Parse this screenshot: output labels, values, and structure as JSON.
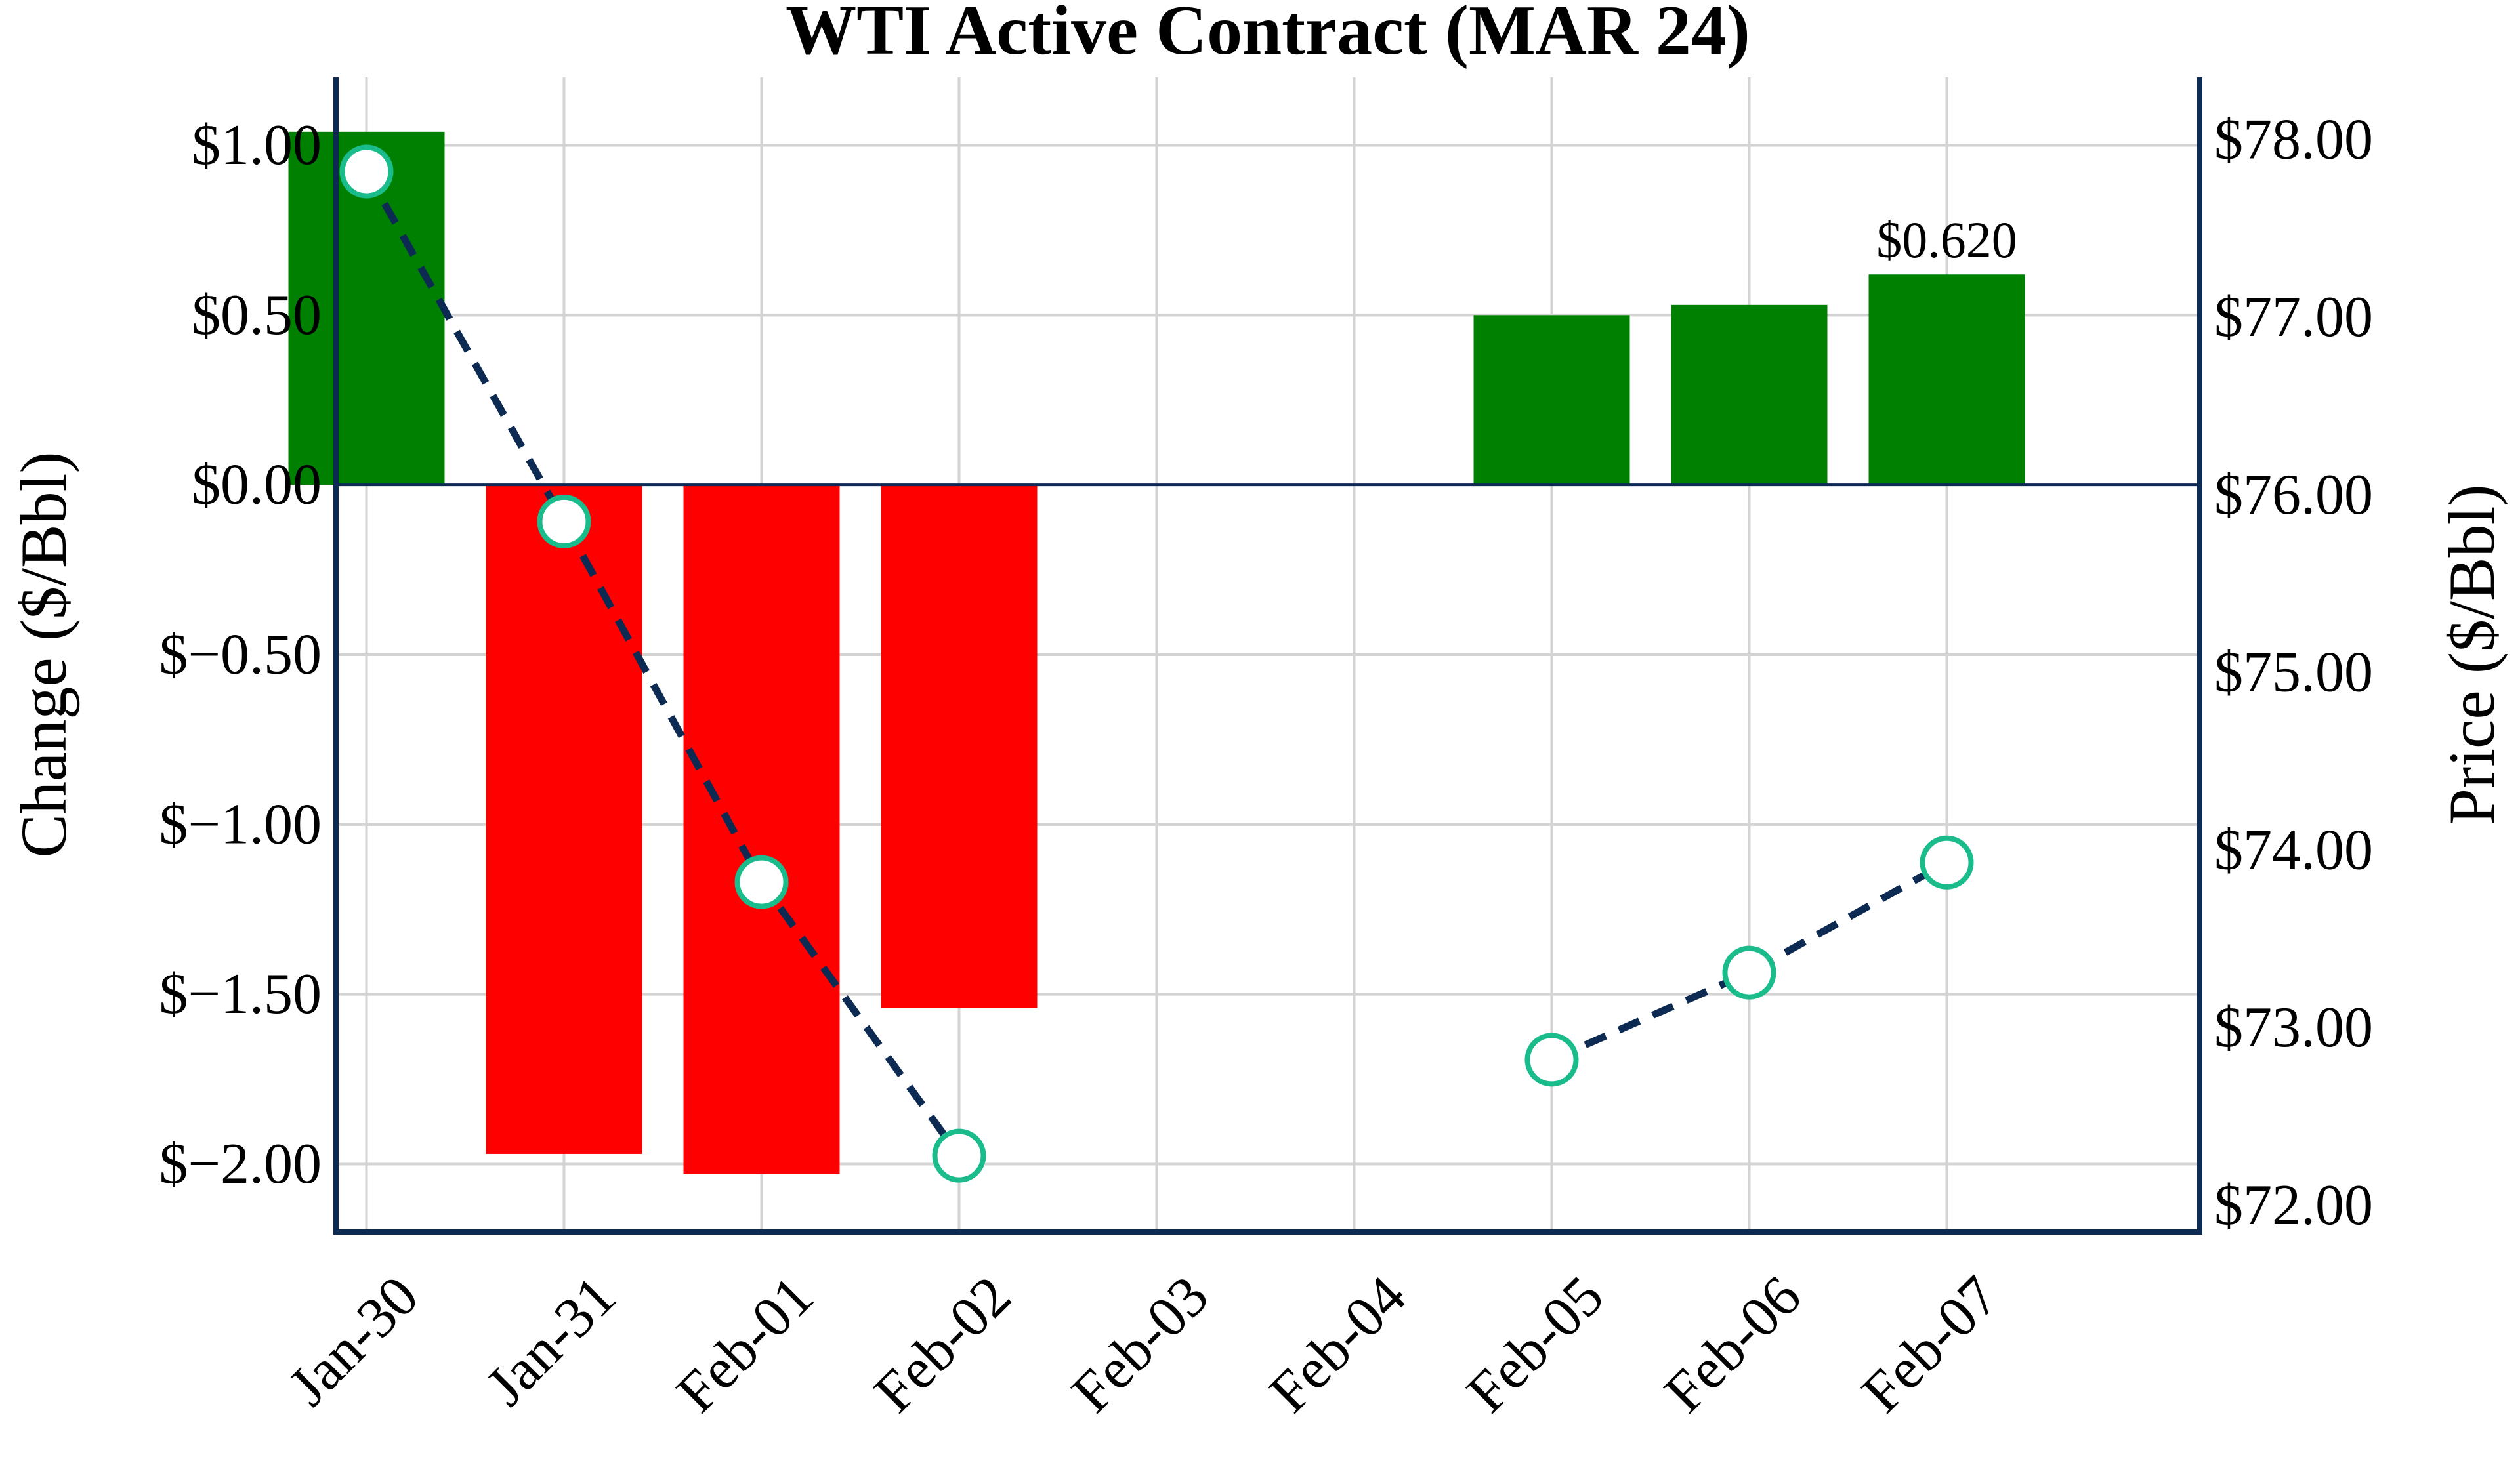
{
  "chart_data": {
    "type": "bar+line",
    "title": "WTI Active Contract (MAR 24)",
    "categories": [
      "Jan-30",
      "Jan-31",
      "Feb-01",
      "Feb-02",
      "Feb-03",
      "Feb-04",
      "Feb-05",
      "Feb-06",
      "Feb-07"
    ],
    "left_axis": {
      "label": "Change ($/Bbl)",
      "range": [
        -2.2,
        1.2
      ],
      "ticks": [
        1.0,
        0.5,
        0.0,
        -0.5,
        -1.0,
        -1.5,
        -2.0
      ],
      "tick_labels": [
        "$1.00",
        "$0.50",
        "$0.00",
        "$−0.50",
        "$−1.00",
        "$−1.50",
        "$−2.00"
      ]
    },
    "right_axis": {
      "label": "Price ($/Bbl)",
      "range": [
        71.85,
        78.35
      ],
      "ticks": [
        78.0,
        77.0,
        76.0,
        75.0,
        74.0,
        73.0,
        72.0
      ],
      "tick_labels": [
        "$78.00",
        "$77.00",
        "$76.00",
        "$75.00",
        "$74.00",
        "$73.00",
        "$72.00"
      ]
    },
    "series": [
      {
        "kind": "bar",
        "axis": "left",
        "values": [
          1.04,
          -1.97,
          -2.03,
          -1.54,
          null,
          null,
          0.5,
          0.53,
          0.62
        ],
        "positive_color": "#008000",
        "negative_color": "#ff0000"
      },
      {
        "kind": "line",
        "axis": "right",
        "style": "dashed",
        "line_color": "#0d2b52",
        "marker": "open-circle",
        "marker_color": "#1abc8c",
        "values": [
          77.82,
          75.85,
          73.82,
          72.28,
          null,
          null,
          72.82,
          73.31,
          73.93
        ]
      }
    ],
    "annotations": [
      {
        "category": "Feb-07",
        "text": "$0.620"
      }
    ],
    "grid": true,
    "legend": "none",
    "colors": {
      "axis": "#0d2b52",
      "grid": "#d3d3d3",
      "zero_line": "#0d2b52"
    }
  }
}
